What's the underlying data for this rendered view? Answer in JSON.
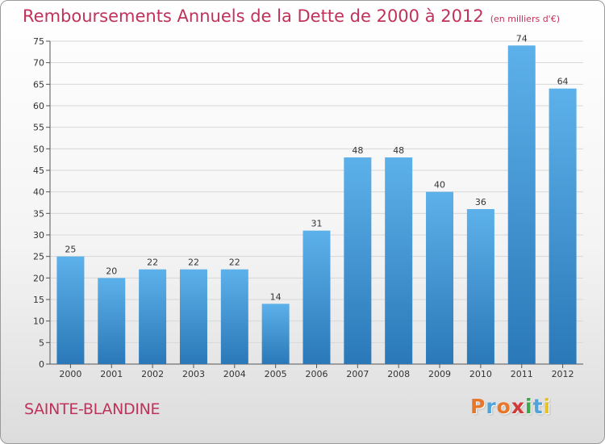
{
  "header": {
    "title": "Remboursements Annuels de la Dette de 2000 à 2012",
    "subtitle": "(en milliers d'€)"
  },
  "footer": {
    "commune": "SAINTE-BLANDINE",
    "logo_text": "Proxiti",
    "logo_colors": [
      "#e8772a",
      "#4fa3d8",
      "#e8772a",
      "#d23a3a",
      "#3aa84a",
      "#4fa3d8",
      "#e8c22a"
    ]
  },
  "colors": {
    "bar_top": "#5db1ea",
    "bar_bottom": "#2a78b8",
    "title": "#c0325a",
    "grid": "#d7d7d7"
  },
  "chart_data": {
    "type": "bar",
    "categories": [
      "2000",
      "2001",
      "2002",
      "2003",
      "2004",
      "2005",
      "2006",
      "2007",
      "2008",
      "2009",
      "2010",
      "2011",
      "2012"
    ],
    "values": [
      25,
      20,
      22,
      22,
      22,
      14,
      31,
      48,
      48,
      40,
      36,
      74,
      64
    ],
    "ylim": [
      0,
      75
    ],
    "yticks": [
      0,
      5,
      10,
      15,
      20,
      25,
      30,
      35,
      40,
      45,
      50,
      55,
      60,
      65,
      70,
      75
    ],
    "grid": true,
    "title": "Remboursements Annuels de la Dette de 2000 à 2012",
    "subtitle": "(en milliers d'€)",
    "xlabel": "",
    "ylabel": ""
  }
}
